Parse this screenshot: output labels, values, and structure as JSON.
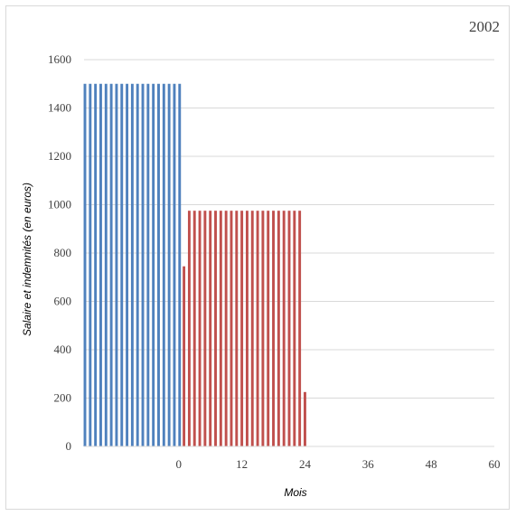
{
  "chart_data": {
    "type": "bar",
    "title": "2002",
    "xlabel": "Mois",
    "ylabel": "Salaire et indemnités (en euros)",
    "xlim": [
      -18,
      60
    ],
    "ylim": [
      0,
      1600
    ],
    "x_ticks": [
      0,
      12,
      24,
      36,
      48,
      60
    ],
    "y_ticks": [
      0,
      200,
      400,
      600,
      800,
      1000,
      1200,
      1400,
      1600
    ],
    "grid": "horizontal",
    "legend": "none",
    "series": [
      {
        "color": "#4f81bd",
        "x": [
          -18,
          -17,
          -16,
          -15,
          -14,
          -13,
          -12,
          -11,
          -10,
          -9,
          -8,
          -7,
          -6,
          -5,
          -4,
          -3,
          -2,
          -1,
          0
        ],
        "values": [
          1500,
          1500,
          1500,
          1500,
          1500,
          1500,
          1500,
          1500,
          1500,
          1500,
          1500,
          1500,
          1500,
          1500,
          1500,
          1500,
          1500,
          1500,
          1500
        ]
      },
      {
        "color": "#c0504d",
        "x": [
          1,
          2,
          3,
          4,
          5,
          6,
          7,
          8,
          9,
          10,
          11,
          12,
          13,
          14,
          15,
          16,
          17,
          18,
          19,
          20,
          21,
          22,
          23,
          24
        ],
        "values": [
          745,
          975,
          975,
          975,
          975,
          975,
          975,
          975,
          975,
          975,
          975,
          975,
          975,
          975,
          975,
          975,
          975,
          975,
          975,
          975,
          975,
          975,
          975,
          225
        ]
      }
    ]
  }
}
